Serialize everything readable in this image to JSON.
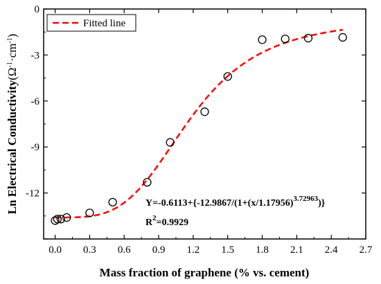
{
  "chart_data": {
    "type": "scatter",
    "xlabel": "Mass fraction of graphene (% vs. cement)",
    "ylabel": "Ln Electrical Conductivity",
    "ylabel_unit": "(Ω·cm)",
    "ylabel_unit_parts": [
      "(",
      "Ω",
      "-1",
      "·cm",
      "-1",
      ")"
    ],
    "xlim": [
      -0.1,
      2.7
    ],
    "ylim": [
      -15,
      0
    ],
    "xticks": [
      0.0,
      0.3,
      0.6,
      0.9,
      1.2,
      1.5,
      1.8,
      2.1,
      2.4,
      2.7
    ],
    "xtick_labels": [
      "0.0",
      "0.3",
      "0.6",
      "0.9",
      "1.2",
      "1.5",
      "1.8",
      "2.1",
      "2.4",
      "2.7"
    ],
    "yticks": [
      -15,
      -12,
      -9,
      -6,
      -3,
      0
    ],
    "ytick_labels": [
      "",
      "-12",
      "-9",
      "-6",
      "-3",
      "0"
    ],
    "grid": false,
    "legend_position": "top-left",
    "series": [
      {
        "name": "",
        "kind": "scatter",
        "marker": "open-circle",
        "color": "#000000",
        "x": [
          0.0,
          0.02,
          0.05,
          0.1,
          0.3,
          0.5,
          0.8,
          1.0,
          1.3,
          1.5,
          1.8,
          2.0,
          2.2,
          2.5
        ],
        "y": [
          -13.8,
          -13.7,
          -13.7,
          -13.6,
          -13.3,
          -12.6,
          -11.3,
          -8.7,
          -6.7,
          -4.4,
          -2.0,
          -1.95,
          -1.9,
          -1.85
        ]
      },
      {
        "name": "Fitted line",
        "kind": "line",
        "style": "dashed",
        "color": "#ff0000",
        "model": {
          "A1": -0.6113,
          "A2": -12.9867,
          "x0": 1.17956,
          "p": 3.72963,
          "x_range": [
            0.0,
            2.5
          ]
        }
      }
    ],
    "equation_parts": {
      "prefix": "Y=-0.6113+{-12.9867/(1+(x/1.17956)",
      "exponent": "3.72963",
      "suffix": ")}"
    },
    "r2_parts": {
      "label": "R",
      "exponent": "2",
      "value": "=0.9929"
    }
  }
}
